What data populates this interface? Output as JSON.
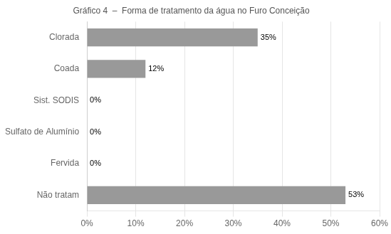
{
  "chart_data": {
    "type": "bar",
    "orientation": "horizontal",
    "title": "Gráfico 4  –  Forma de tratamento da água no Furo Conceição",
    "categories": [
      "Não tratam",
      "Fervida",
      "Sulfato de Alumínio",
      "Sist. SODIS",
      "Coada",
      "Clorada"
    ],
    "values": [
      53,
      0,
      0,
      0,
      12,
      35
    ],
    "value_labels": [
      "53%",
      "0%",
      "0%",
      "0%",
      "12%",
      "35%"
    ],
    "data_labels": true,
    "color": "#999999",
    "xlim": [
      0,
      60
    ],
    "xticks": [
      {
        "value": 0,
        "label": "0%"
      },
      {
        "value": 10,
        "label": "10%"
      },
      {
        "value": 20,
        "label": "20%"
      },
      {
        "value": 30,
        "label": "30%"
      },
      {
        "value": 40,
        "label": "40%"
      },
      {
        "value": 50,
        "label": "50%"
      },
      {
        "value": 60,
        "label": "60%"
      }
    ],
    "grid": true
  }
}
